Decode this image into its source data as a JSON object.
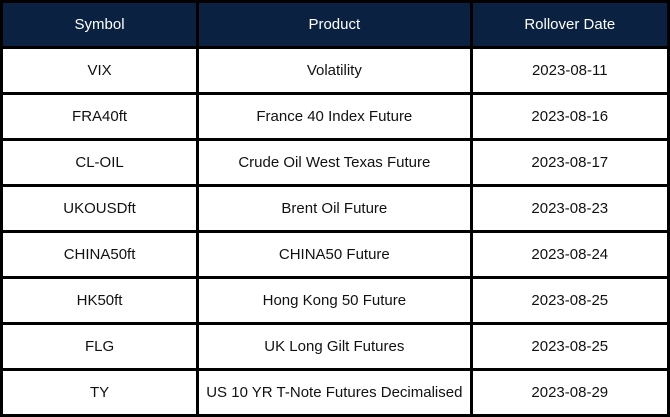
{
  "table": {
    "columns": [
      {
        "label": "Symbol"
      },
      {
        "label": "Product"
      },
      {
        "label": "Rollover Date"
      }
    ],
    "rows": [
      {
        "symbol": "VIX",
        "product": "Volatility",
        "rollover_date": "2023-08-11"
      },
      {
        "symbol": "FRA40ft",
        "product": "France 40 Index Future",
        "rollover_date": "2023-08-16"
      },
      {
        "symbol": "CL-OIL",
        "product": "Crude Oil West Texas Future",
        "rollover_date": "2023-08-17"
      },
      {
        "symbol": "UKOUSDft",
        "product": "Brent Oil Future",
        "rollover_date": "2023-08-23"
      },
      {
        "symbol": "CHINA50ft",
        "product": "CHINA50 Future",
        "rollover_date": "2023-08-24"
      },
      {
        "symbol": "HK50ft",
        "product": "Hong Kong 50 Future",
        "rollover_date": "2023-08-25"
      },
      {
        "symbol": "FLG",
        "product": "UK Long Gilt Futures",
        "rollover_date": "2023-08-25"
      },
      {
        "symbol": "TY",
        "product": "US 10 YR T-Note Futures Decimalised",
        "rollover_date": "2023-08-29"
      }
    ],
    "colors": {
      "header_bg": "#0a2142",
      "header_text": "#ffffff",
      "border": "#000000",
      "row_bg": "#ffffff",
      "row_text": "#111111"
    }
  }
}
